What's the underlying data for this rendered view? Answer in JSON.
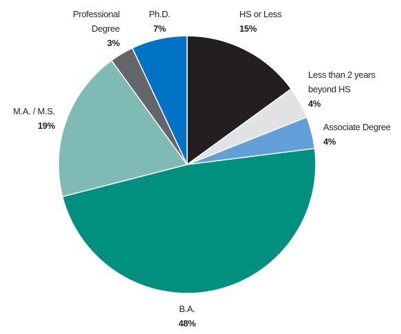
{
  "chart_data": {
    "type": "pie",
    "categories": [
      "HS or Less",
      "Less than 2 years beyond HS",
      "Associate Degree",
      "B.A.",
      "M.A. / M.S.",
      "Professional Degree",
      "Ph.D."
    ],
    "values": [
      15,
      4,
      4,
      48,
      19,
      3,
      7
    ],
    "value_labels": [
      "15%",
      "4%",
      "4%",
      "48%",
      "19%",
      "3%",
      "7%"
    ],
    "colors": [
      "#231f20",
      "#e1e2e3",
      "#619fd8",
      "#00907f",
      "#80bab5",
      "#636569",
      "#0073c7"
    ]
  }
}
